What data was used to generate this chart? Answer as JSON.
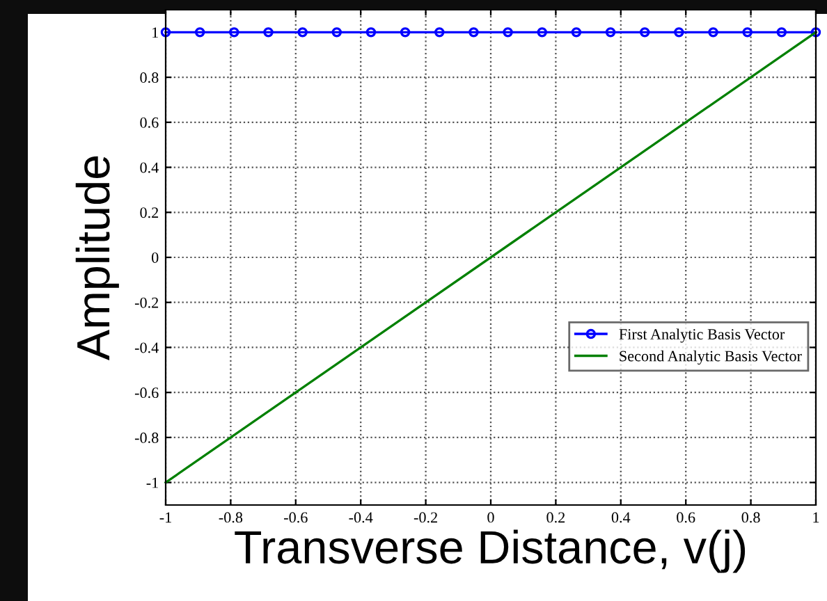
{
  "chart_data": {
    "type": "line",
    "xlabel": "Transverse Distance, v(j)",
    "ylabel": "Amplitude",
    "series": [
      {
        "name": "First Analytic Basis Vector",
        "color": "#0000ff",
        "marker": "circle",
        "x": [
          -1,
          -0.8947,
          -0.7895,
          -0.6842,
          -0.5789,
          -0.4737,
          -0.3684,
          -0.2632,
          -0.1579,
          -0.0526,
          0.0526,
          0.1579,
          0.2632,
          0.3684,
          0.4737,
          0.5789,
          0.6842,
          0.7895,
          0.8947,
          1
        ],
        "values": [
          1,
          1,
          1,
          1,
          1,
          1,
          1,
          1,
          1,
          1,
          1,
          1,
          1,
          1,
          1,
          1,
          1,
          1,
          1,
          1
        ]
      },
      {
        "name": "Second Analytic Basis Vector",
        "color": "#008000",
        "x": [
          -1,
          1
        ],
        "values": [
          -1,
          1
        ]
      }
    ],
    "xlim": [
      -1,
      1
    ],
    "ylim": [
      -1.1,
      1.1
    ],
    "xticks": [
      -1,
      -0.8,
      -0.6,
      -0.4,
      -0.2,
      0,
      0.2,
      0.4,
      0.6,
      0.8,
      1
    ],
    "yticks": [
      -1,
      -0.8,
      -0.6,
      -0.4,
      -0.2,
      0,
      0.2,
      0.4,
      0.6,
      0.8,
      1
    ],
    "grid": true,
    "legend": "right",
    "line_style": "solid"
  }
}
